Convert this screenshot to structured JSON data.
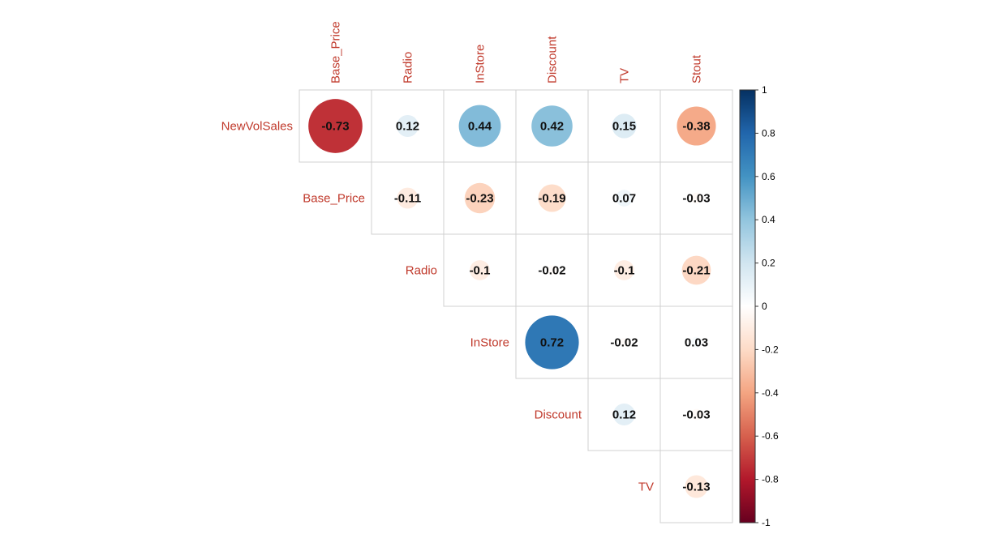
{
  "chart_data": {
    "type": "heatmap",
    "subtype": "correlation-matrix-upper-triangle",
    "mark": "circle",
    "row_labels": [
      "NewVolSales",
      "Base_Price",
      "Radio",
      "InStore",
      "Discount",
      "TV"
    ],
    "col_labels": [
      "Base_Price",
      "Radio",
      "InStore",
      "Discount",
      "TV",
      "Stout"
    ],
    "cells": [
      {
        "row": "NewVolSales",
        "col": "Base_Price",
        "value": -0.73,
        "label": "-0.73"
      },
      {
        "row": "NewVolSales",
        "col": "Radio",
        "value": 0.12,
        "label": "0.12"
      },
      {
        "row": "NewVolSales",
        "col": "InStore",
        "value": 0.44,
        "label": "0.44"
      },
      {
        "row": "NewVolSales",
        "col": "Discount",
        "value": 0.42,
        "label": "0.42"
      },
      {
        "row": "NewVolSales",
        "col": "TV",
        "value": 0.15,
        "label": "0.15"
      },
      {
        "row": "NewVolSales",
        "col": "Stout",
        "value": -0.38,
        "label": "-0.38"
      },
      {
        "row": "Base_Price",
        "col": "Radio",
        "value": -0.11,
        "label": "-0.11"
      },
      {
        "row": "Base_Price",
        "col": "InStore",
        "value": -0.23,
        "label": "-0.23"
      },
      {
        "row": "Base_Price",
        "col": "Discount",
        "value": -0.19,
        "label": "-0.19"
      },
      {
        "row": "Base_Price",
        "col": "TV",
        "value": 0.07,
        "label": "0.07"
      },
      {
        "row": "Base_Price",
        "col": "Stout",
        "value": -0.03,
        "label": "-0.03"
      },
      {
        "row": "Radio",
        "col": "InStore",
        "value": -0.1,
        "label": "-0.1"
      },
      {
        "row": "Radio",
        "col": "Discount",
        "value": -0.02,
        "label": "-0.02"
      },
      {
        "row": "Radio",
        "col": "TV",
        "value": -0.1,
        "label": "-0.1"
      },
      {
        "row": "Radio",
        "col": "Stout",
        "value": -0.21,
        "label": "-0.21"
      },
      {
        "row": "InStore",
        "col": "Discount",
        "value": 0.72,
        "label": "0.72"
      },
      {
        "row": "InStore",
        "col": "TV",
        "value": -0.02,
        "label": "-0.02"
      },
      {
        "row": "InStore",
        "col": "Stout",
        "value": 0.03,
        "label": "0.03"
      },
      {
        "row": "Discount",
        "col": "TV",
        "value": 0.12,
        "label": "0.12"
      },
      {
        "row": "Discount",
        "col": "Stout",
        "value": -0.03,
        "label": "-0.03"
      },
      {
        "row": "TV",
        "col": "Stout",
        "value": -0.13,
        "label": "-0.13"
      }
    ],
    "colorbar": {
      "range": [
        -1,
        1
      ],
      "ticks": [
        "1",
        "0.8",
        "0.6",
        "0.4",
        "0.2",
        "0",
        "-0.2",
        "-0.4",
        "-0.6",
        "-0.8",
        "-1"
      ],
      "colors": [
        "#67001F",
        "#B2182B",
        "#D6604D",
        "#F4A582",
        "#FDDBC7",
        "#FFFFFF",
        "#D1E5F0",
        "#92C5DE",
        "#4393C3",
        "#2166AC",
        "#053061"
      ]
    },
    "label_color": "#c0392b",
    "grid": true
  }
}
